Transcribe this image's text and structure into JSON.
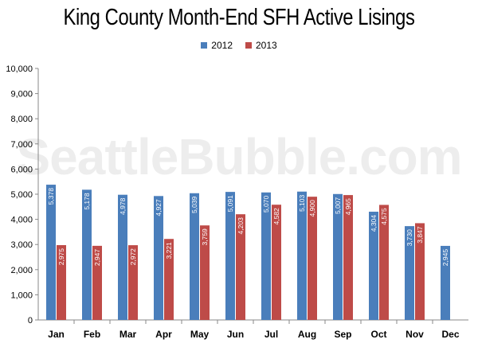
{
  "chart_data": {
    "type": "bar",
    "title": "King County Month-End SFH Active Lisings",
    "watermark": "SeattleBubble.com",
    "categories": [
      "Jan",
      "Feb",
      "Mar",
      "Apr",
      "May",
      "Jun",
      "Jul",
      "Aug",
      "Sep",
      "Oct",
      "Nov",
      "Dec"
    ],
    "series": [
      {
        "name": "2012",
        "color": "#4a7ebb",
        "values": [
          5378,
          5178,
          4978,
          4927,
          5039,
          5091,
          5070,
          5103,
          5007,
          4304,
          3730,
          2945
        ],
        "labels": [
          "5,378",
          "5,178",
          "4,978",
          "4,927",
          "5,039",
          "5,091",
          "5,070",
          "5,103",
          "5,007",
          "4,304",
          "3,730",
          "2,945"
        ]
      },
      {
        "name": "2013",
        "color": "#be4b48",
        "values": [
          2975,
          2947,
          2972,
          3221,
          3759,
          4203,
          4582,
          4900,
          4965,
          4575,
          3847,
          null
        ],
        "labels": [
          "2,975",
          "2,947",
          "2,972",
          "3,221",
          "3,759",
          "4,203",
          "4,582",
          "4,900",
          "4,965",
          "4,575",
          "3,847",
          ""
        ]
      }
    ],
    "xlabel": "",
    "ylabel": "",
    "ylim": [
      0,
      10000
    ],
    "yticks": [
      0,
      1000,
      2000,
      3000,
      4000,
      5000,
      6000,
      7000,
      8000,
      9000,
      10000
    ],
    "ytick_labels": [
      "0",
      "1,000",
      "2,000",
      "3,000",
      "4,000",
      "5,000",
      "6,000",
      "7,000",
      "8,000",
      "9,000",
      "10,000"
    ],
    "grid": false,
    "legend_position": "top"
  }
}
